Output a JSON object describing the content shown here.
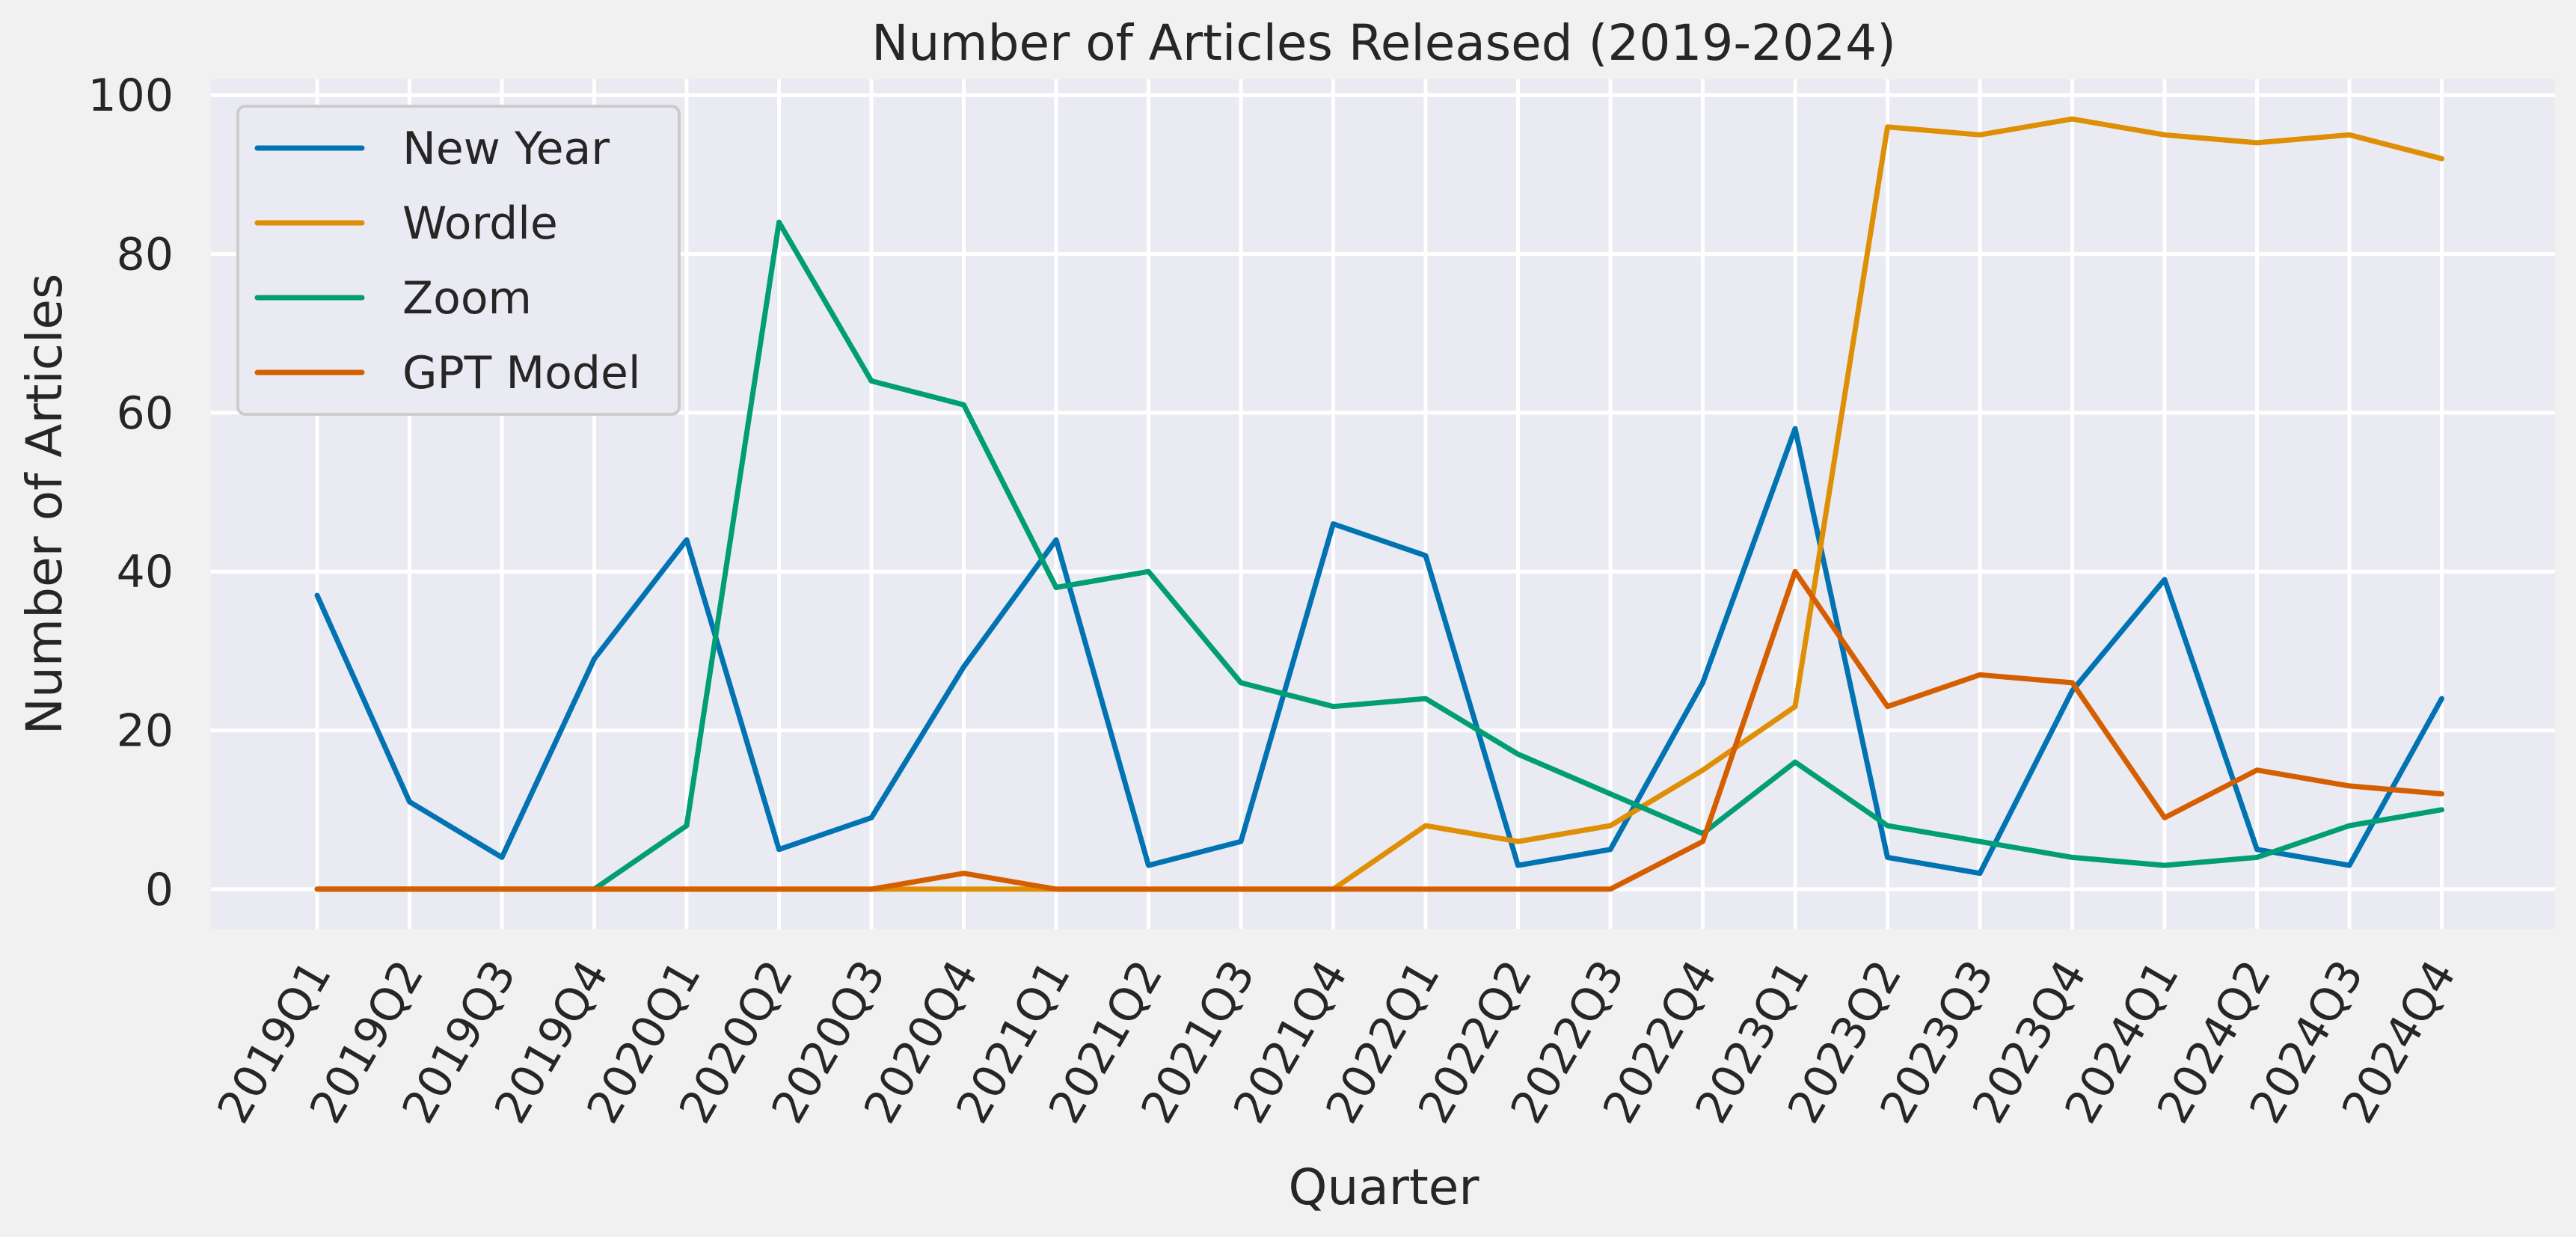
{
  "chart_data": {
    "type": "line",
    "title": "Number of Articles Released (2019-2024)",
    "xlabel": "Quarter",
    "ylabel": "Number of Articles",
    "ylim": [
      -5,
      102
    ],
    "yticks": [
      0,
      20,
      40,
      60,
      80,
      100
    ],
    "grid": true,
    "legend_position": "top-left",
    "categories": [
      "2019Q1",
      "2019Q2",
      "2019Q3",
      "2019Q4",
      "2020Q1",
      "2020Q2",
      "2020Q3",
      "2020Q4",
      "2021Q1",
      "2021Q2",
      "2021Q3",
      "2021Q4",
      "2022Q1",
      "2022Q2",
      "2022Q3",
      "2022Q4",
      "2023Q1",
      "2023Q2",
      "2023Q3",
      "2023Q4",
      "2024Q1",
      "2024Q2",
      "2024Q3",
      "2024Q4"
    ],
    "series": [
      {
        "name": "New Year",
        "color": "#0173b2",
        "values": [
          37,
          11,
          4,
          29,
          44,
          5,
          9,
          28,
          44,
          3,
          6,
          46,
          42,
          3,
          5,
          26,
          58,
          4,
          2,
          25,
          39,
          5,
          3,
          24
        ]
      },
      {
        "name": "Wordle",
        "color": "#de8f05",
        "values": [
          0,
          0,
          0,
          0,
          0,
          0,
          0,
          0,
          0,
          0,
          0,
          0,
          8,
          6,
          8,
          15,
          23,
          96,
          95,
          97,
          95,
          94,
          95,
          92
        ]
      },
      {
        "name": "Zoom",
        "color": "#029e73",
        "values": [
          0,
          0,
          0,
          0,
          8,
          84,
          64,
          61,
          38,
          40,
          26,
          23,
          24,
          17,
          12,
          7,
          16,
          8,
          6,
          4,
          3,
          4,
          8,
          10
        ]
      },
      {
        "name": "GPT Model",
        "color": "#d55e00",
        "values": [
          0,
          0,
          0,
          0,
          0,
          0,
          0,
          2,
          0,
          0,
          0,
          0,
          0,
          0,
          0,
          6,
          40,
          23,
          27,
          26,
          9,
          15,
          13,
          12
        ]
      }
    ]
  },
  "colors": {
    "plot_background": "#eaeaf2",
    "page_background": "#f1f1f1",
    "grid": "#ffffff"
  }
}
